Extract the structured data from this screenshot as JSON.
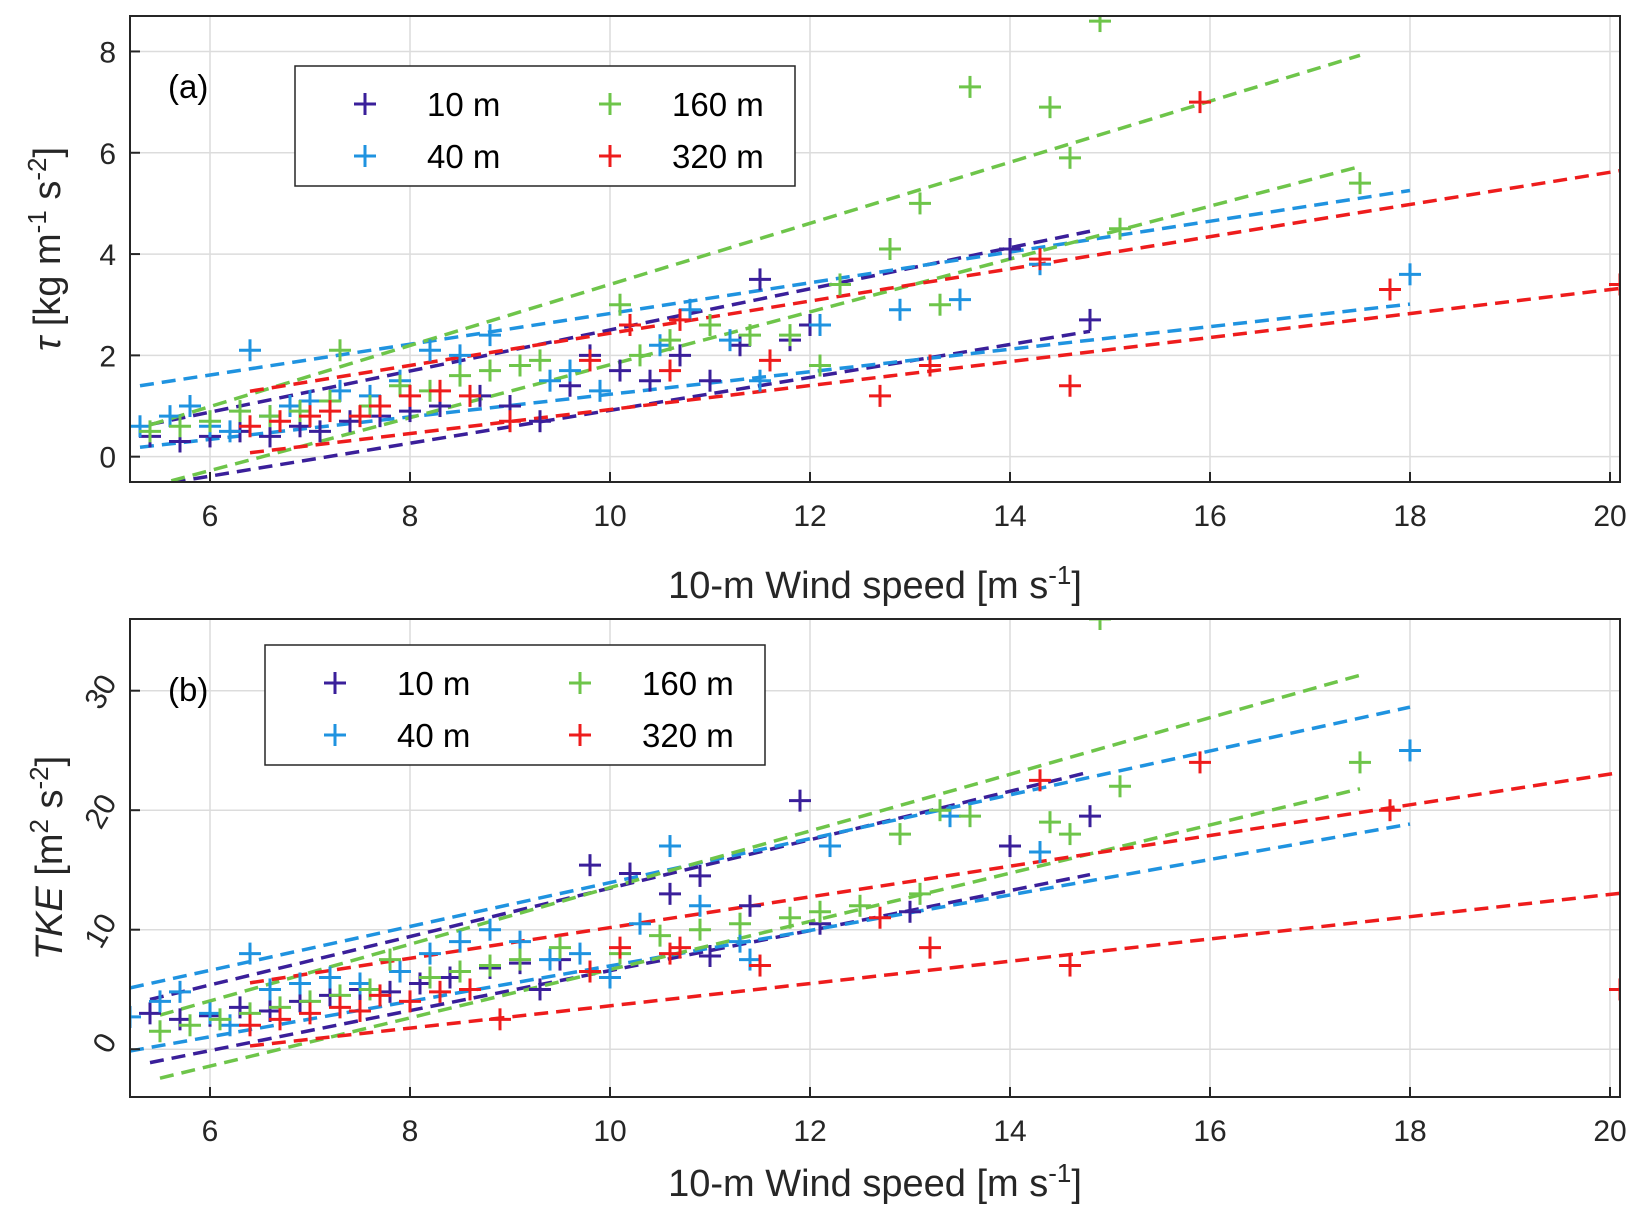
{
  "chart_data": [
    {
      "type": "scatter",
      "panel_label": "(a)",
      "xlabel": "10-m Wind speed [m s-1]",
      "ylabel": "τ [kg m-1 s-2]",
      "xlim": [
        5.2,
        20.1
      ],
      "ylim": [
        -0.5,
        8.7
      ],
      "xticks": [
        "6",
        "8",
        "10",
        "12",
        "14",
        "16",
        "18",
        "20"
      ],
      "yticks": [
        "0",
        "2",
        "4",
        "6",
        "8"
      ],
      "grid": true,
      "legend_position": "top-left",
      "series": [
        {
          "name": "10 m",
          "color": "#3a1f9a",
          "points": [
            [
              5.4,
              0.4
            ],
            [
              5.7,
              0.3
            ],
            [
              6.0,
              0.4
            ],
            [
              6.3,
              0.5
            ],
            [
              6.6,
              0.4
            ],
            [
              6.9,
              0.6
            ],
            [
              7.1,
              0.5
            ],
            [
              7.4,
              0.7
            ],
            [
              7.7,
              0.8
            ],
            [
              8.0,
              0.9
            ],
            [
              8.3,
              1.0
            ],
            [
              8.7,
              1.2
            ],
            [
              9.0,
              1.0
            ],
            [
              9.3,
              0.7
            ],
            [
              9.6,
              1.4
            ],
            [
              9.8,
              2.0
            ],
            [
              10.1,
              1.7
            ],
            [
              10.4,
              1.5
            ],
            [
              10.7,
              2.0
            ],
            [
              11.0,
              1.5
            ],
            [
              11.3,
              2.2
            ],
            [
              11.5,
              3.5
            ],
            [
              11.8,
              2.3
            ],
            [
              12.0,
              2.6
            ],
            [
              14.0,
              4.1
            ],
            [
              14.8,
              2.7
            ]
          ]
        },
        {
          "name": "40 m",
          "color": "#1f93e0",
          "points": [
            [
              5.3,
              0.6
            ],
            [
              5.6,
              0.8
            ],
            [
              5.8,
              1.0
            ],
            [
              6.0,
              0.6
            ],
            [
              6.2,
              0.5
            ],
            [
              6.4,
              2.1
            ],
            [
              6.6,
              0.8
            ],
            [
              6.8,
              1.0
            ],
            [
              7.0,
              1.1
            ],
            [
              7.3,
              1.3
            ],
            [
              7.6,
              1.2
            ],
            [
              7.9,
              1.5
            ],
            [
              8.2,
              2.1
            ],
            [
              8.5,
              2.0
            ],
            [
              8.8,
              2.4
            ],
            [
              9.1,
              1.8
            ],
            [
              9.4,
              1.5
            ],
            [
              9.6,
              1.7
            ],
            [
              9.9,
              1.3
            ],
            [
              10.2,
              2.6
            ],
            [
              10.5,
              2.2
            ],
            [
              10.8,
              2.9
            ],
            [
              11.2,
              2.3
            ],
            [
              11.5,
              1.5
            ],
            [
              12.1,
              2.6
            ],
            [
              12.9,
              2.9
            ],
            [
              13.5,
              3.1
            ],
            [
              14.3,
              3.8
            ],
            [
              18.0,
              3.6
            ]
          ]
        },
        {
          "name": "160 m",
          "color": "#6ec54a",
          "points": [
            [
              5.4,
              0.5
            ],
            [
              5.7,
              0.6
            ],
            [
              6.0,
              0.7
            ],
            [
              6.3,
              0.9
            ],
            [
              6.6,
              0.8
            ],
            [
              6.9,
              0.9
            ],
            [
              7.2,
              1.1
            ],
            [
              7.3,
              2.1
            ],
            [
              7.6,
              1.0
            ],
            [
              7.9,
              1.4
            ],
            [
              8.2,
              1.3
            ],
            [
              8.5,
              1.6
            ],
            [
              8.8,
              1.7
            ],
            [
              9.1,
              1.8
            ],
            [
              9.3,
              1.9
            ],
            [
              10.1,
              3.0
            ],
            [
              10.3,
              2.0
            ],
            [
              10.6,
              2.3
            ],
            [
              11.0,
              2.6
            ],
            [
              11.4,
              2.4
            ],
            [
              11.8,
              2.4
            ],
            [
              12.1,
              1.8
            ],
            [
              12.3,
              3.4
            ],
            [
              12.8,
              4.1
            ],
            [
              13.1,
              5.0
            ],
            [
              13.3,
              3.0
            ],
            [
              13.6,
              7.3
            ],
            [
              14.4,
              6.9
            ],
            [
              14.6,
              5.9
            ],
            [
              14.9,
              8.6
            ],
            [
              15.1,
              4.5
            ],
            [
              17.5,
              5.4
            ]
          ]
        },
        {
          "name": "320 m",
          "color": "#ee1c1c",
          "points": [
            [
              6.4,
              0.6
            ],
            [
              6.7,
              0.7
            ],
            [
              7.0,
              0.8
            ],
            [
              7.2,
              0.9
            ],
            [
              7.5,
              0.8
            ],
            [
              7.7,
              1.0
            ],
            [
              8.0,
              1.2
            ],
            [
              8.3,
              1.3
            ],
            [
              8.6,
              1.2
            ],
            [
              9.0,
              0.7
            ],
            [
              9.8,
              1.9
            ],
            [
              10.2,
              2.6
            ],
            [
              10.6,
              1.7
            ],
            [
              10.7,
              2.7
            ],
            [
              11.6,
              1.9
            ],
            [
              12.7,
              1.2
            ],
            [
              13.2,
              1.8
            ],
            [
              14.3,
              3.9
            ],
            [
              14.6,
              1.4
            ],
            [
              15.9,
              7.0
            ],
            [
              17.8,
              3.3
            ],
            [
              20.1,
              3.4
            ]
          ]
        }
      ]
    },
    {
      "type": "scatter",
      "panel_label": "(b)",
      "xlabel": "10-m Wind speed [m s-1]",
      "ylabel": "TKE [m2 s-2]",
      "xlim": [
        5.2,
        20.1
      ],
      "ylim": [
        -4,
        36
      ],
      "xticks": [
        "6",
        "8",
        "10",
        "12",
        "14",
        "16",
        "18",
        "20"
      ],
      "yticks": [
        "0",
        "10",
        "20",
        "30"
      ],
      "grid": true,
      "legend_position": "top-left",
      "series": [
        {
          "name": "10 m",
          "color": "#3a1f9a",
          "points": [
            [
              5.4,
              3.0
            ],
            [
              5.7,
              2.5
            ],
            [
              6.0,
              2.8
            ],
            [
              6.3,
              3.5
            ],
            [
              6.6,
              3.2
            ],
            [
              6.9,
              4.0
            ],
            [
              7.2,
              4.5
            ],
            [
              7.5,
              5.0
            ],
            [
              7.8,
              4.8
            ],
            [
              8.1,
              5.5
            ],
            [
              8.4,
              6.0
            ],
            [
              8.8,
              6.8
            ],
            [
              9.1,
              7.2
            ],
            [
              9.3,
              5.0
            ],
            [
              9.5,
              7.5
            ],
            [
              9.8,
              15.4
            ],
            [
              10.2,
              14.7
            ],
            [
              10.6,
              13.0
            ],
            [
              10.9,
              14.5
            ],
            [
              11.0,
              7.8
            ],
            [
              11.4,
              12.0
            ],
            [
              11.9,
              20.8
            ],
            [
              12.1,
              10.5
            ],
            [
              13.0,
              11.5
            ],
            [
              14.0,
              17.0
            ],
            [
              14.8,
              19.5
            ]
          ]
        },
        {
          "name": "40 m",
          "color": "#1f93e0",
          "points": [
            [
              5.2,
              2.7
            ],
            [
              5.5,
              4.0
            ],
            [
              5.7,
              4.8
            ],
            [
              6.0,
              3.0
            ],
            [
              6.2,
              2.0
            ],
            [
              6.4,
              8.0
            ],
            [
              6.6,
              5.0
            ],
            [
              6.9,
              5.5
            ],
            [
              7.2,
              6.0
            ],
            [
              7.5,
              5.5
            ],
            [
              7.9,
              6.5
            ],
            [
              8.2,
              8.0
            ],
            [
              8.5,
              9.0
            ],
            [
              8.8,
              10.0
            ],
            [
              9.1,
              9.0
            ],
            [
              9.4,
              7.5
            ],
            [
              9.7,
              8.0
            ],
            [
              10.0,
              6.0
            ],
            [
              10.3,
              10.5
            ],
            [
              10.6,
              17.0
            ],
            [
              10.9,
              12.0
            ],
            [
              11.3,
              9.0
            ],
            [
              11.4,
              7.5
            ],
            [
              12.2,
              17.0
            ],
            [
              13.4,
              19.5
            ],
            [
              14.3,
              16.5
            ],
            [
              18.0,
              25.0
            ]
          ]
        },
        {
          "name": "160 m",
          "color": "#6ec54a",
          "points": [
            [
              5.5,
              1.5
            ],
            [
              5.8,
              2.0
            ],
            [
              6.1,
              2.5
            ],
            [
              6.4,
              3.0
            ],
            [
              6.7,
              3.5
            ],
            [
              7.0,
              4.0
            ],
            [
              7.3,
              4.5
            ],
            [
              7.6,
              5.0
            ],
            [
              7.8,
              7.5
            ],
            [
              8.2,
              6.0
            ],
            [
              8.5,
              6.5
            ],
            [
              8.8,
              7.0
            ],
            [
              9.1,
              7.5
            ],
            [
              9.5,
              8.5
            ],
            [
              10.1,
              8.0
            ],
            [
              10.5,
              9.5
            ],
            [
              10.9,
              10.0
            ],
            [
              11.3,
              10.5
            ],
            [
              11.8,
              11.0
            ],
            [
              12.1,
              11.5
            ],
            [
              12.5,
              12.0
            ],
            [
              12.9,
              18.0
            ],
            [
              13.1,
              13.0
            ],
            [
              13.3,
              20.0
            ],
            [
              13.6,
              19.5
            ],
            [
              14.4,
              19.0
            ],
            [
              14.6,
              18.0
            ],
            [
              14.9,
              36.0
            ],
            [
              15.1,
              22.0
            ],
            [
              17.5,
              24.0
            ]
          ]
        },
        {
          "name": "320 m",
          "color": "#ee1c1c",
          "points": [
            [
              6.4,
              2.0
            ],
            [
              6.7,
              2.5
            ],
            [
              7.0,
              3.0
            ],
            [
              7.3,
              3.5
            ],
            [
              7.5,
              3.2
            ],
            [
              7.7,
              4.5
            ],
            [
              8.0,
              4.0
            ],
            [
              8.3,
              4.8
            ],
            [
              8.6,
              5.0
            ],
            [
              8.9,
              2.5
            ],
            [
              9.8,
              6.5
            ],
            [
              10.1,
              8.5
            ],
            [
              10.6,
              8.0
            ],
            [
              10.7,
              8.5
            ],
            [
              11.5,
              7.0
            ],
            [
              12.7,
              11.0
            ],
            [
              13.2,
              8.5
            ],
            [
              14.3,
              22.5
            ],
            [
              14.6,
              7.0
            ],
            [
              15.9,
              24.0
            ],
            [
              17.8,
              20.0
            ],
            [
              20.1,
              5.0
            ]
          ]
        }
      ],
      "fits": [
        {
          "name": "10 m",
          "color": "#3a1f9a",
          "points": [
            [
              5.2,
              0.5
            ],
            [
              14.8,
              21.5
            ]
          ]
        },
        {
          "name": "10 m",
          "color": "#3a1f9a",
          "points": [
            [
              5.2,
              2.5
            ],
            [
              14.8,
              21.0
            ]
          ]
        }
      ]
    }
  ]
}
